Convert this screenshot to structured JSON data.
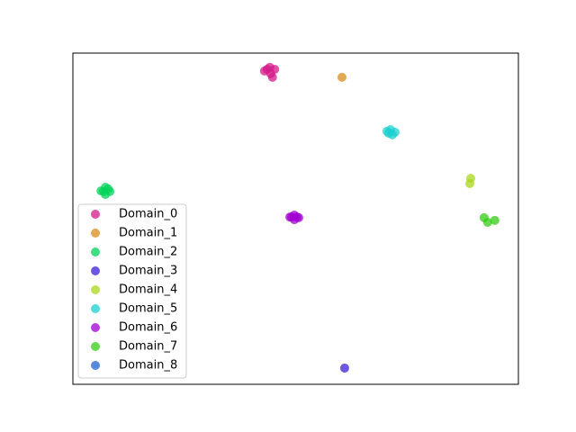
{
  "chart_data": {
    "type": "scatter",
    "xlim": [
      0,
      100
    ],
    "ylim": [
      0,
      100
    ],
    "legend": "lower left",
    "series": [
      {
        "name": "Domain_0",
        "color": "#d4198a",
        "x": [
          43.0,
          43.6,
          44.2,
          45.3,
          44.4,
          44.8
        ],
        "y": [
          94.6,
          95.1,
          95.7,
          95.1,
          93.8,
          92.7
        ]
      },
      {
        "name": "Domain_1",
        "color": "#d98c1c",
        "x": [
          60.4
        ],
        "y": [
          92.7
        ]
      },
      {
        "name": "Domain_2",
        "color": "#00d35a",
        "x": [
          6.3,
          7.3,
          8.3,
          7.3,
          6.9,
          7.9
        ],
        "y": [
          58.4,
          59.5,
          58.2,
          57.3,
          58.2,
          59.0
        ]
      },
      {
        "name": "Domain_3",
        "color": "#3b1fd6",
        "x": [
          61.0
        ],
        "y": [
          4.9
        ]
      },
      {
        "name": "Domain_4",
        "color": "#a8d81a",
        "x": [
          89.3,
          89.1
        ],
        "y": [
          62.2,
          60.6
        ]
      },
      {
        "name": "Domain_5",
        "color": "#1ad0d0",
        "x": [
          70.5,
          71.3,
          72.3,
          71.7,
          70.9
        ],
        "y": [
          76.4,
          76.9,
          76.1,
          75.3,
          75.8
        ]
      },
      {
        "name": "Domain_6",
        "color": "#a000d0",
        "x": [
          48.7,
          49.7,
          50.7,
          49.7,
          49.1,
          50.3
        ],
        "y": [
          50.5,
          51.1,
          50.3,
          49.7,
          50.5,
          50.5
        ]
      },
      {
        "name": "Domain_7",
        "color": "#33cc14",
        "x": [
          92.3,
          93.1,
          94.7
        ],
        "y": [
          50.3,
          48.9,
          49.5
        ]
      },
      {
        "name": "Domain_8",
        "color": "#2060d0",
        "x": [],
        "y": []
      }
    ]
  }
}
